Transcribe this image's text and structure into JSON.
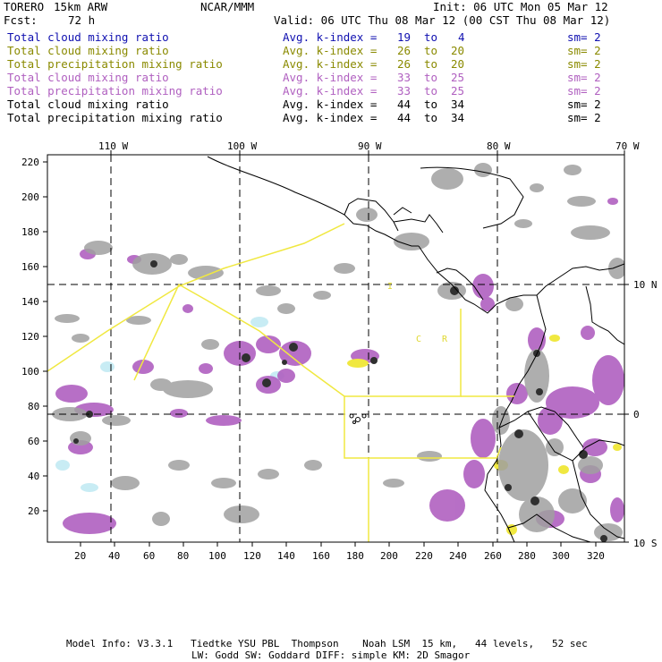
{
  "header": {
    "model": "TORERO",
    "resolution": "15km ARW",
    "org": "NCAR/MMM",
    "init": "Init: 06 UTC Mon 05 Mar 12",
    "fcst_label": "Fcst:",
    "fcst_value": "72 h",
    "valid": "Valid: 06 UTC Thu 08 Mar 12 (00 CST Thu 08 Mar 12)"
  },
  "legend": [
    {
      "field": "Total cloud mixing ratio",
      "kindex": "Avg. k-index =",
      "hi": "19",
      "to": "to",
      "lo": "4",
      "sm": "sm= 2",
      "color": "#1010b0"
    },
    {
      "field": "Total cloud mixing ratio",
      "kindex": "Avg. k-index =",
      "hi": "26",
      "to": "to",
      "lo": "20",
      "sm": "sm= 2",
      "color": "#8a8a00"
    },
    {
      "field": "Total precipitation mixing ratio",
      "kindex": "Avg. k-index =",
      "hi": "26",
      "to": "to",
      "lo": "20",
      "sm": "sm= 2",
      "color": "#8a8a00"
    },
    {
      "field": "Total cloud mixing ratio",
      "kindex": "Avg. k-index =",
      "hi": "33",
      "to": "to",
      "lo": "25",
      "sm": "sm= 2",
      "color": "#b060c0"
    },
    {
      "field": "Total precipitation mixing ratio",
      "kindex": "Avg. k-index =",
      "hi": "33",
      "to": "to",
      "lo": "25",
      "sm": "sm= 2",
      "color": "#b060c0"
    },
    {
      "field": "Total cloud mixing ratio",
      "kindex": "Avg. k-index =",
      "hi": "44",
      "to": "to",
      "lo": "34",
      "sm": "sm= 2",
      "color": "#000000"
    },
    {
      "field": "Total precipitation mixing ratio",
      "kindex": "Avg. k-index =",
      "hi": "44",
      "to": "to",
      "lo": "34",
      "sm": "sm= 2",
      "color": "#000000"
    }
  ],
  "axes": {
    "top": [
      "110 W",
      "100 W",
      "90 W",
      "80 W",
      "70 W"
    ],
    "right": [
      "10 N",
      "0",
      "10 S"
    ],
    "left": [
      "220",
      "200",
      "180",
      "160",
      "140",
      "120",
      "100",
      "80",
      "60",
      "40",
      "20"
    ],
    "bottom": [
      "20",
      "40",
      "60",
      "80",
      "100",
      "120",
      "140",
      "160",
      "180",
      "200",
      "220",
      "240",
      "260",
      "280",
      "300",
      "320"
    ]
  },
  "map_labels": {
    "label_i": "I",
    "label_c": "C",
    "label_r": "R"
  },
  "footer": {
    "line1": "Model Info: V3.3.1   Tiedtke YSU PBL  Thompson    Noah LSM  15 km,   44 levels,   52 sec",
    "line2": "LW: Godd SW: Goddard DIFF: simple KM: 2D Smagor"
  },
  "colors": {
    "gray_cloud": "#a0a0a0",
    "dark_core": "#303030",
    "purple": "#b060c0",
    "yellow": "#f0e840",
    "cyan": "#c8ecf4",
    "boundary": "#f0e840"
  }
}
